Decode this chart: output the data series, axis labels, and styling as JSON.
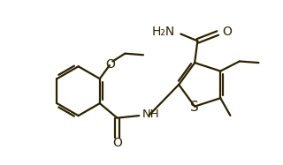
{
  "line_color": "#2d2200",
  "bg_color": "#ffffff",
  "line_width": 1.6,
  "font_size": 10,
  "figsize": [
    3.2,
    1.87
  ],
  "dpi": 100,
  "xlim": [
    0,
    10
  ],
  "ylim": [
    0,
    5.85
  ]
}
